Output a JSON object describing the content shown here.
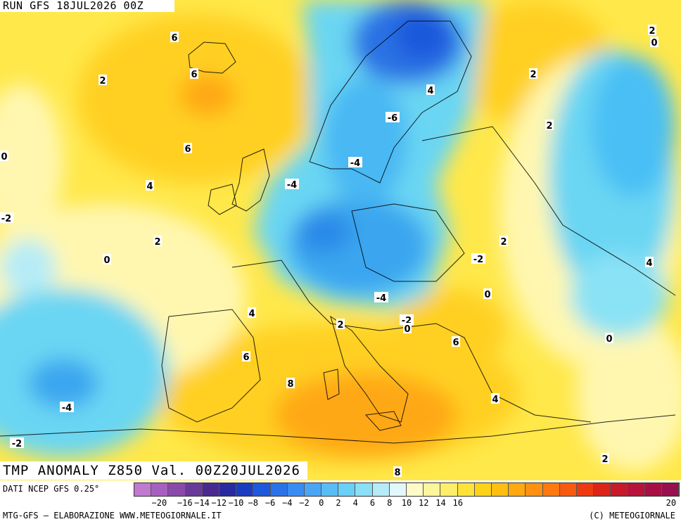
{
  "run_title": "RUN GFS 18JUL2026 00Z",
  "map_title": "TMP ANOMALY Z850 Val. 00Z20JUL2026",
  "source_note": "DATI NCEP GFS 0.25°",
  "footer_left": "MTG-GFS — ELABORAZIONE WWW.METEOGIORNALE.IT",
  "footer_right": "(C) METEOGIORNALE",
  "legend": {
    "colors": [
      "#c07ad0",
      "#a860c0",
      "#8a4aaa",
      "#6a3a98",
      "#4a2a90",
      "#2a2aa0",
      "#1a3cc0",
      "#1e58dc",
      "#2a72ea",
      "#3a8cf2",
      "#4aa6f5",
      "#5abcf5",
      "#6ad0f5",
      "#8ae0f5",
      "#b5ecf7",
      "#e2f8fb",
      "#fffac8",
      "#fff59a",
      "#ffee6a",
      "#ffe23a",
      "#ffd21a",
      "#ffbe10",
      "#ffa810",
      "#ff9010",
      "#ff7810",
      "#f85a10",
      "#ee3a10",
      "#dd2418",
      "#c81a2a",
      "#b8143a",
      "#a81045",
      "#98104e"
    ],
    "ticks": [
      "−20",
      "−16",
      "−14",
      "−12",
      "−10",
      "−8",
      "−6",
      "−4",
      "−2",
      "0",
      "2",
      "4",
      "6",
      "8",
      "10",
      "12",
      "14",
      "16",
      "20"
    ],
    "tick_values": [
      -20,
      -16,
      -14,
      -12,
      -10,
      -8,
      -6,
      -4,
      -2,
      0,
      2,
      4,
      6,
      8,
      10,
      12,
      14,
      16,
      20
    ]
  },
  "contour_labels": [
    "6",
    "6",
    "2",
    "6",
    "4",
    "2",
    "0",
    "-2",
    "-4",
    "-2",
    "-4",
    "-4",
    "-6",
    "4",
    "2",
    "2",
    "2",
    "-2",
    "4",
    "0",
    "0",
    "-4",
    "-2",
    "0",
    "2",
    "4",
    "6",
    "8",
    "6",
    "4",
    "2",
    "8",
    "-4",
    "-2",
    "2",
    "0",
    "0"
  ]
}
